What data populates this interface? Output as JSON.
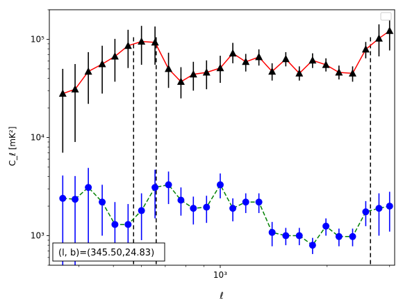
{
  "chart_data": {
    "type": "scatter",
    "title": "",
    "xlabel": "ℓ",
    "ylabel": "C_ℓ  [mK²]",
    "x_scale": "log",
    "y_scale": "log",
    "xlim": [
      330,
      3100
    ],
    "ylim": [
      500,
      200000
    ],
    "x_tick_labels": [
      {
        "value": 1000,
        "label": "10³"
      }
    ],
    "y_tick_labels": [
      {
        "value": 1000,
        "label": "10³"
      },
      {
        "value": 10000,
        "label": "10⁴"
      },
      {
        "value": 100000,
        "label": "10⁵"
      }
    ],
    "vlines": [
      570,
      660,
      2650
    ],
    "legend": {
      "position": "top-right",
      "entries": []
    },
    "annotation": "(l, b)=(345.50,24.83)",
    "series": [
      {
        "marker": "triangle",
        "marker_color": "#000000",
        "line_color": "#ff0000",
        "line_style": "solid",
        "x": [
          360,
          390,
          425,
          465,
          505,
          550,
          600,
          655,
          715,
          775,
          840,
          915,
          1000,
          1085,
          1180,
          1285,
          1400,
          1530,
          1670,
          1820,
          1985,
          2160,
          2360,
          2570,
          2800,
          3000
        ],
        "y": [
          28000,
          31000,
          47000,
          56000,
          67000,
          86000,
          95000,
          93000,
          50000,
          37000,
          44000,
          46000,
          51000,
          72000,
          59000,
          66000,
          47000,
          63000,
          45000,
          61000,
          55000,
          46000,
          45000,
          79000,
          102000,
          122000
        ],
        "err_low": [
          21000,
          22000,
          25000,
          28000,
          30000,
          35000,
          40000,
          38000,
          18000,
          12000,
          14000,
          15000,
          15000,
          15000,
          12000,
          12000,
          9000,
          10000,
          7000,
          10000,
          8000,
          7000,
          8000,
          15000,
          35000,
          45000
        ],
        "err_high": [
          22000,
          25000,
          27000,
          30000,
          34000,
          39000,
          42000,
          42000,
          23000,
          15000,
          15000,
          15000,
          17000,
          20000,
          12000,
          13000,
          10000,
          11000,
          8000,
          11000,
          9000,
          8000,
          8000,
          15000,
          40000,
          50000
        ]
      },
      {
        "marker": "circle",
        "marker_color": "#0000ff",
        "line_color": "#008000",
        "line_style": "dashed",
        "x": [
          360,
          390,
          425,
          465,
          505,
          550,
          600,
          655,
          715,
          775,
          840,
          915,
          1000,
          1085,
          1180,
          1285,
          1400,
          1530,
          1670,
          1820,
          1985,
          2160,
          2360,
          2570,
          2800,
          3000
        ],
        "y": [
          2400,
          2350,
          3100,
          2200,
          1300,
          1300,
          1800,
          3100,
          3300,
          2300,
          1900,
          1950,
          3300,
          1900,
          2200,
          2200,
          1080,
          1000,
          1000,
          800,
          1250,
          980,
          980,
          1750,
          1900,
          2000
        ],
        "err_low": [
          1900,
          1850,
          2300,
          1200,
          700,
          650,
          900,
          1600,
          1200,
          700,
          600,
          600,
          900,
          500,
          500,
          500,
          300,
          200,
          200,
          150,
          250,
          200,
          200,
          500,
          900,
          900
        ],
        "err_high": [
          1700,
          1700,
          1800,
          1100,
          900,
          800,
          900,
          1600,
          1200,
          800,
          600,
          600,
          1000,
          500,
          500,
          500,
          300,
          200,
          200,
          150,
          250,
          200,
          200,
          500,
          800,
          800
        ]
      }
    ]
  }
}
